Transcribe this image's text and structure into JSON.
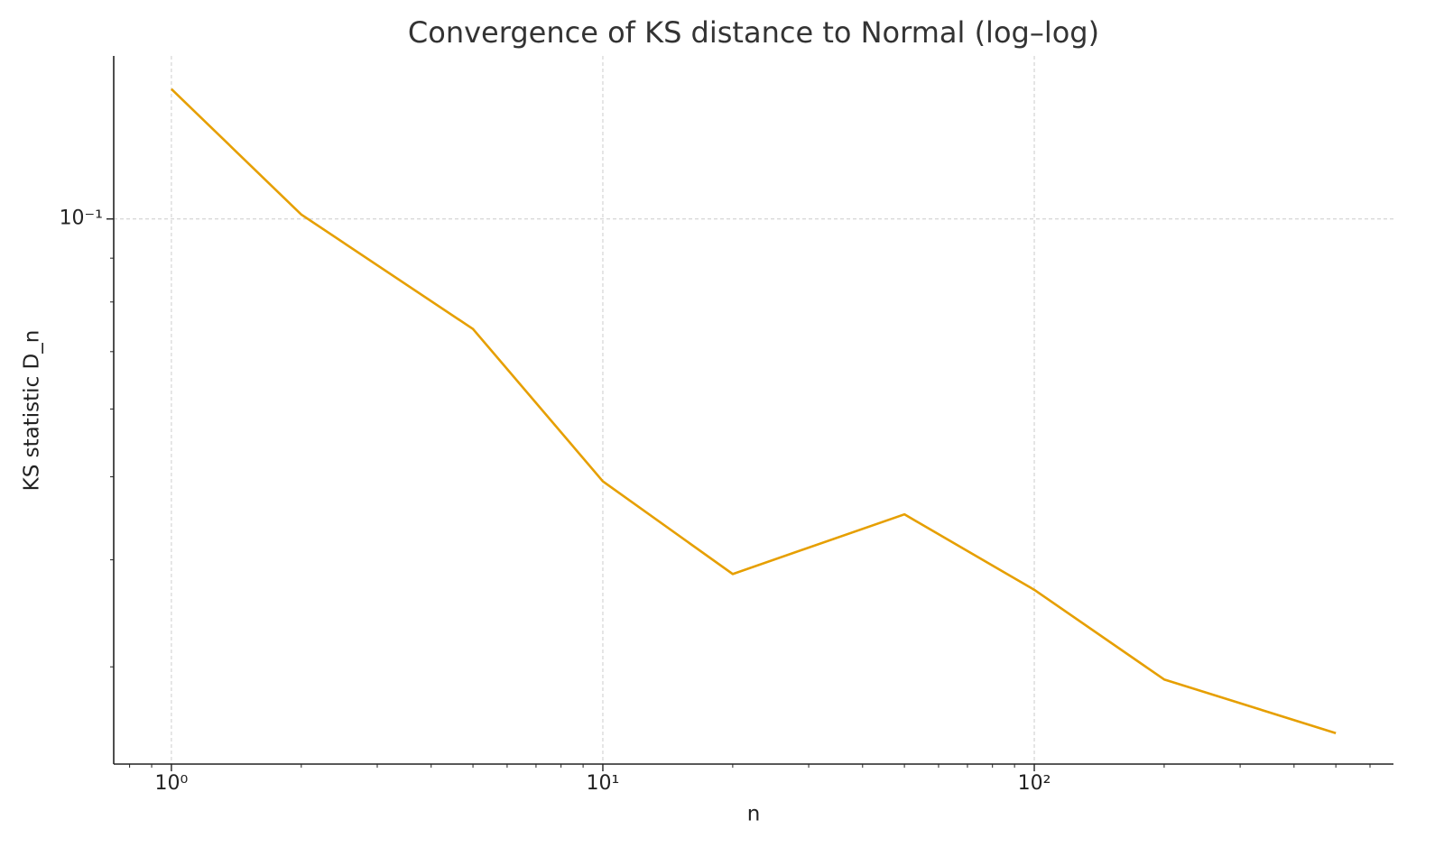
{
  "chart_data": {
    "type": "line",
    "title": "Convergence of KS distance to Normal (log–log)",
    "x_label": "n",
    "y_label": "KS statistic D_n",
    "x": [
      1,
      2,
      5,
      10,
      20,
      50,
      100,
      200,
      500
    ],
    "series": [
      {
        "color": "#e69f00",
        "values": [
          0.1418,
          0.1012,
          0.0744,
          0.0494,
          0.0385,
          0.0452,
          0.0369,
          0.029,
          0.0251
        ]
      }
    ],
    "x_scale": "log",
    "y_scale": "log",
    "xlim": [
      0.735,
      680
    ],
    "ylim": [
      0.0231,
      0.155
    ],
    "xticks": [
      {
        "value": 1,
        "label": "10⁰"
      },
      {
        "value": 10,
        "label": "10¹"
      },
      {
        "value": 100,
        "label": "10²"
      }
    ],
    "yticks": [
      {
        "value": 0.1,
        "label": "10⁻¹"
      }
    ],
    "xminorticks": [
      0.8,
      0.9,
      2,
      3,
      4,
      5,
      6,
      7,
      8,
      9,
      20,
      30,
      40,
      50,
      60,
      70,
      80,
      90,
      200,
      300,
      400,
      500,
      600
    ],
    "yminorticks": [
      0.03,
      0.04,
      0.05,
      0.06,
      0.07,
      0.08,
      0.09
    ],
    "grid": true
  }
}
